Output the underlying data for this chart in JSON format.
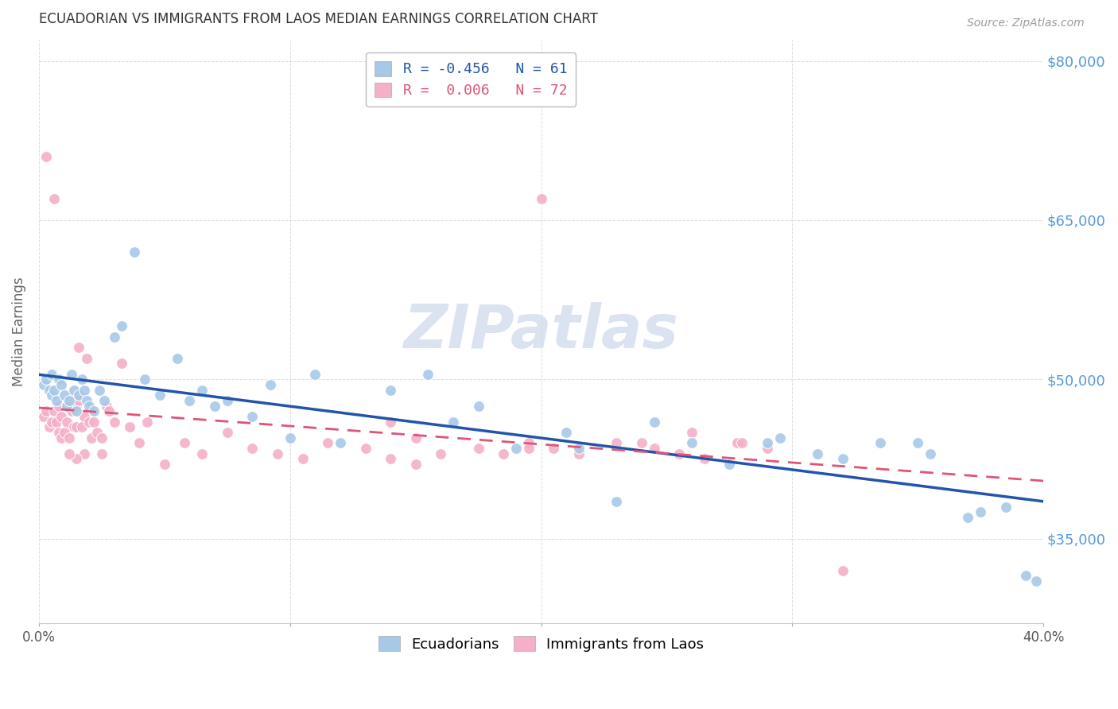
{
  "title": "ECUADORIAN VS IMMIGRANTS FROM LAOS MEDIAN EARNINGS CORRELATION CHART",
  "source": "Source: ZipAtlas.com",
  "ylabel": "Median Earnings",
  "xlim": [
    0.0,
    0.4
  ],
  "ylim": [
    27000,
    82000
  ],
  "ytick_positions": [
    35000,
    50000,
    65000,
    80000
  ],
  "ytick_labels": [
    "$35,000",
    "$50,000",
    "$65,000",
    "$80,000"
  ],
  "xtick_positions": [
    0.0,
    0.1,
    0.2,
    0.3,
    0.4
  ],
  "xtick_labels": [
    "0.0%",
    "",
    "",
    "",
    "40.0%"
  ],
  "legend_r_blue": "R = -0.456",
  "legend_n_blue": "N = 61",
  "legend_r_pink": "R =  0.006",
  "legend_n_pink": "N = 72",
  "blue_scatter_color": "#a8c8e8",
  "pink_scatter_color": "#f4b0c8",
  "blue_line_color": "#2255aa",
  "pink_line_color": "#dd5577",
  "watermark_color": "#ccd8ea",
  "title_color": "#333333",
  "axis_label_color": "#666666",
  "right_ytick_color": "#5599dd",
  "grid_color": "#dddddd",
  "blue_x": [
    0.002,
    0.003,
    0.004,
    0.005,
    0.005,
    0.006,
    0.007,
    0.008,
    0.009,
    0.01,
    0.011,
    0.012,
    0.013,
    0.014,
    0.015,
    0.016,
    0.017,
    0.018,
    0.019,
    0.02,
    0.022,
    0.024,
    0.026,
    0.03,
    0.033,
    0.038,
    0.042,
    0.048,
    0.055,
    0.06,
    0.065,
    0.07,
    0.075,
    0.085,
    0.092,
    0.1,
    0.11,
    0.12,
    0.14,
    0.155,
    0.165,
    0.175,
    0.19,
    0.21,
    0.215,
    0.23,
    0.245,
    0.26,
    0.275,
    0.29,
    0.295,
    0.31,
    0.32,
    0.335,
    0.35,
    0.355,
    0.37,
    0.375,
    0.385,
    0.393,
    0.397
  ],
  "blue_y": [
    49500,
    50000,
    49000,
    50500,
    48500,
    49000,
    48000,
    50000,
    49500,
    48500,
    47500,
    48000,
    50500,
    49000,
    47000,
    48500,
    50000,
    49000,
    48000,
    47500,
    47000,
    49000,
    48000,
    54000,
    55000,
    62000,
    50000,
    48500,
    52000,
    48000,
    49000,
    47500,
    48000,
    46500,
    49500,
    44500,
    50500,
    44000,
    49000,
    50500,
    46000,
    47500,
    43500,
    45000,
    43500,
    38500,
    46000,
    44000,
    42000,
    44000,
    44500,
    43000,
    42500,
    44000,
    44000,
    43000,
    37000,
    37500,
    38000,
    31500,
    31000
  ],
  "pink_x": [
    0.002,
    0.003,
    0.003,
    0.004,
    0.005,
    0.006,
    0.006,
    0.007,
    0.008,
    0.008,
    0.009,
    0.009,
    0.01,
    0.011,
    0.012,
    0.012,
    0.013,
    0.014,
    0.015,
    0.015,
    0.016,
    0.016,
    0.017,
    0.018,
    0.019,
    0.02,
    0.021,
    0.022,
    0.023,
    0.025,
    0.027,
    0.028,
    0.03,
    0.033,
    0.036,
    0.04,
    0.043,
    0.05,
    0.058,
    0.065,
    0.075,
    0.085,
    0.095,
    0.105,
    0.115,
    0.13,
    0.14,
    0.15,
    0.16,
    0.175,
    0.185,
    0.195,
    0.205,
    0.215,
    0.23,
    0.245,
    0.255,
    0.265,
    0.278,
    0.29,
    0.025,
    0.018,
    0.015,
    0.012,
    0.14,
    0.2,
    0.26,
    0.15,
    0.28,
    0.195,
    0.32,
    0.24
  ],
  "pink_y": [
    46500,
    47000,
    71000,
    45500,
    46000,
    47000,
    67000,
    46000,
    45000,
    47500,
    46500,
    44500,
    45000,
    46000,
    44500,
    48000,
    47000,
    45500,
    45500,
    47500,
    53000,
    48000,
    45500,
    46500,
    52000,
    46000,
    44500,
    46000,
    45000,
    44500,
    47500,
    47000,
    46000,
    51500,
    45500,
    44000,
    46000,
    42000,
    44000,
    43000,
    45000,
    43500,
    43000,
    42500,
    44000,
    43500,
    42500,
    44500,
    43000,
    43500,
    43000,
    44000,
    43500,
    43000,
    44000,
    43500,
    43000,
    42500,
    44000,
    43500,
    43000,
    43000,
    42500,
    43000,
    46000,
    67000,
    45000,
    42000,
    44000,
    43500,
    32000,
    44000
  ]
}
